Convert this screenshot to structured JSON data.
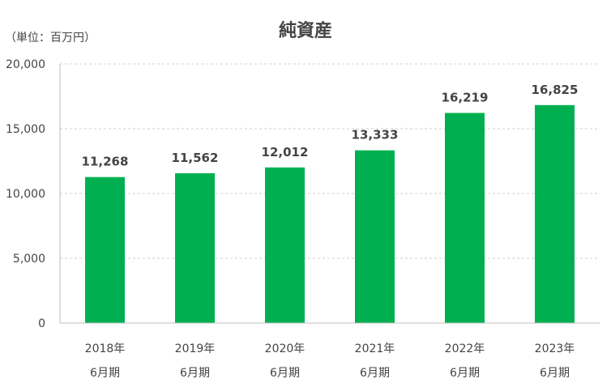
{
  "chart_data": {
    "type": "bar",
    "title": "純資産",
    "unit_label": "（単位：百万円）",
    "categories": [
      [
        "2018年",
        "6月期"
      ],
      [
        "2019年",
        "6月期"
      ],
      [
        "2020年",
        "6月期"
      ],
      [
        "2021年",
        "6月期"
      ],
      [
        "2022年",
        "6月期"
      ],
      [
        "2023年",
        "6月期"
      ]
    ],
    "values": [
      11268,
      11562,
      12012,
      13333,
      16219,
      16825
    ],
    "data_labels": [
      "11,268",
      "11,562",
      "12,012",
      "13,333",
      "16,219",
      "16,825"
    ],
    "ylim": [
      0,
      20000
    ],
    "yticks": [
      0,
      5000,
      10000,
      15000,
      20000
    ],
    "ytick_labels": [
      "0",
      "5,000",
      "10,000",
      "15,000",
      "20,000"
    ],
    "grid": true,
    "bar_color": "#00b050"
  }
}
